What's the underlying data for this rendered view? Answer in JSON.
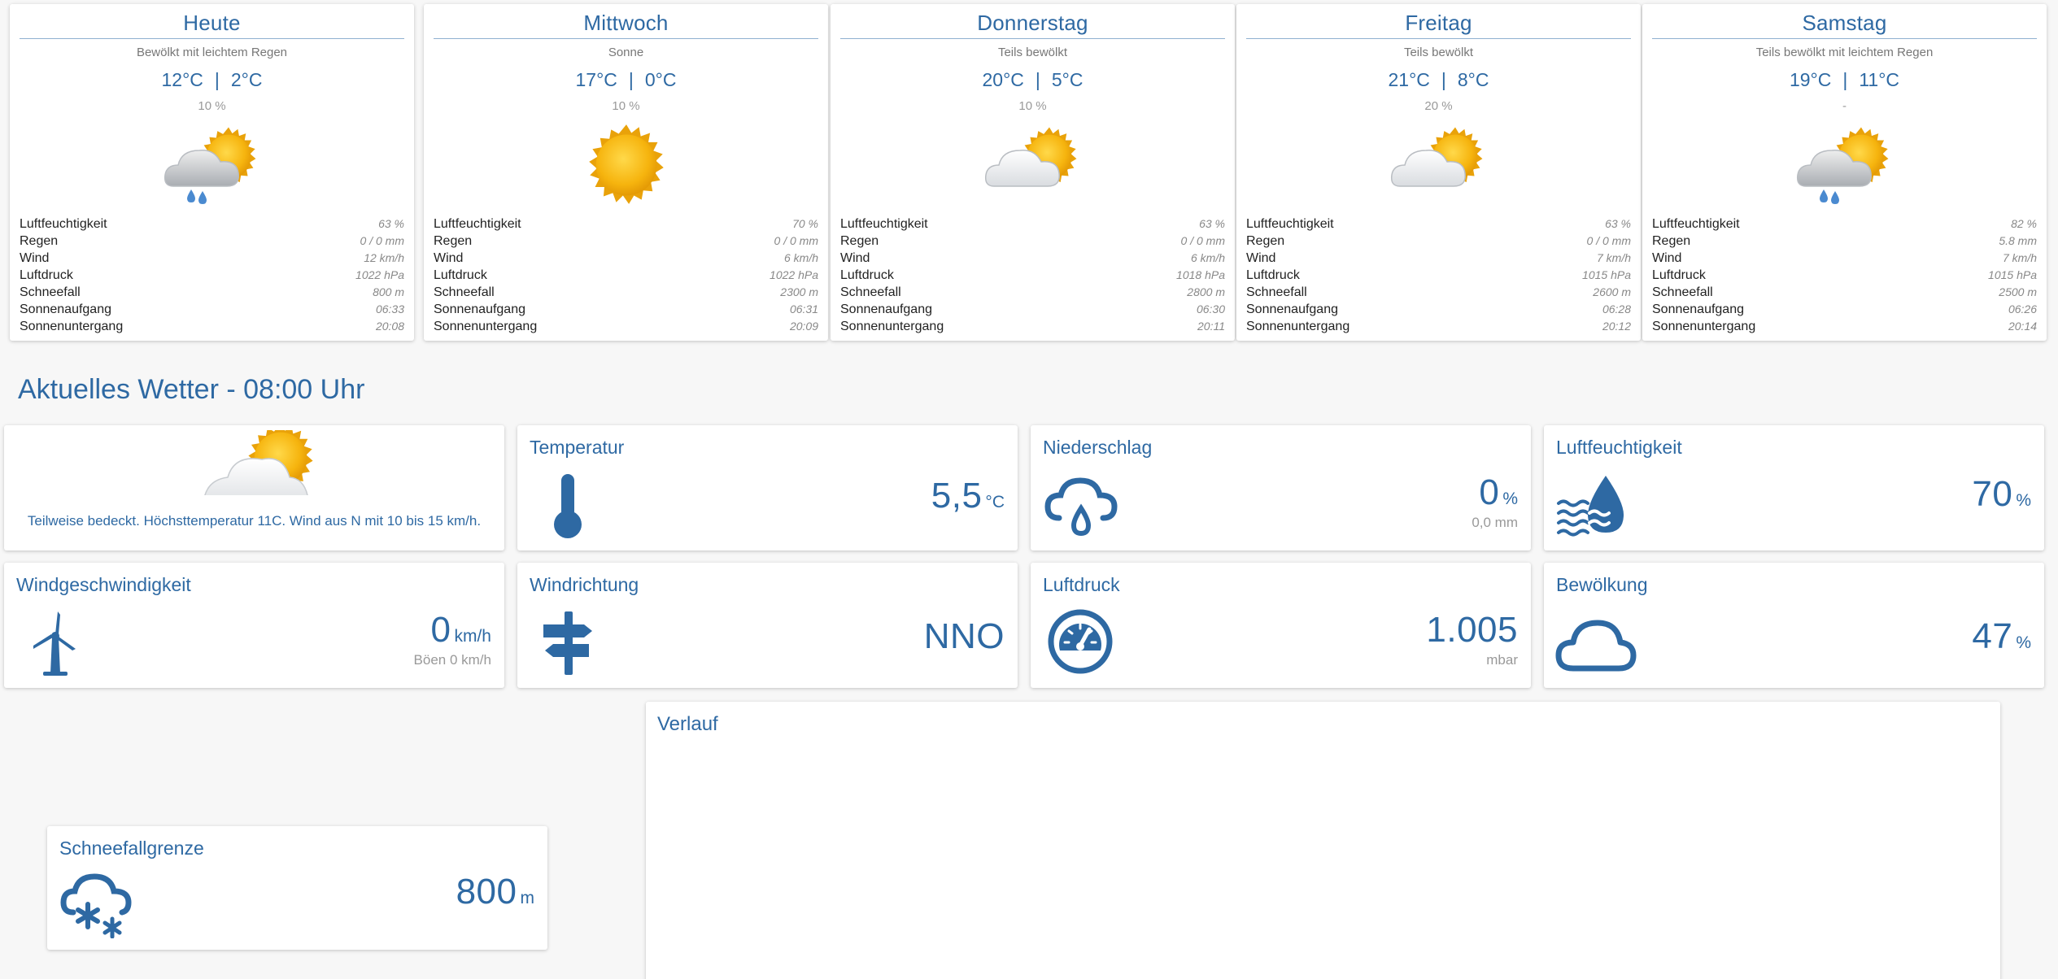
{
  "forecast": [
    {
      "day": "Heute",
      "description": "Bewölkt mit leichtem Regen",
      "temp_max": "12°C",
      "temp_min": "2°C",
      "rain_prob": "10 %",
      "icon": "cloud-sun-rain-icon",
      "details": [
        {
          "label": "Luftfeuchtigkeit",
          "value": "63 %"
        },
        {
          "label": "Regen",
          "value": "0 / 0 mm"
        },
        {
          "label": "Wind",
          "value": "12 km/h"
        },
        {
          "label": "Luftdruck",
          "value": "1022 hPa"
        },
        {
          "label": "Schneefall",
          "value": "800 m"
        },
        {
          "label": "Sonnenaufgang",
          "value": "06:33"
        },
        {
          "label": "Sonnenuntergang",
          "value": "20:08"
        }
      ]
    },
    {
      "day": "Mittwoch",
      "description": "Sonne",
      "temp_max": "17°C",
      "temp_min": "0°C",
      "rain_prob": "10 %",
      "icon": "sun-icon",
      "details": [
        {
          "label": "Luftfeuchtigkeit",
          "value": "70 %"
        },
        {
          "label": "Regen",
          "value": "0 / 0 mm"
        },
        {
          "label": "Wind",
          "value": "6 km/h"
        },
        {
          "label": "Luftdruck",
          "value": "1022 hPa"
        },
        {
          "label": "Schneefall",
          "value": "2300 m"
        },
        {
          "label": "Sonnenaufgang",
          "value": "06:31"
        },
        {
          "label": "Sonnenuntergang",
          "value": "20:09"
        }
      ]
    },
    {
      "day": "Donnerstag",
      "description": "Teils bewölkt",
      "temp_max": "20°C",
      "temp_min": "5°C",
      "rain_prob": "10 %",
      "icon": "cloud-sun-icon",
      "details": [
        {
          "label": "Luftfeuchtigkeit",
          "value": "63 %"
        },
        {
          "label": "Regen",
          "value": "0 / 0 mm"
        },
        {
          "label": "Wind",
          "value": "6 km/h"
        },
        {
          "label": "Luftdruck",
          "value": "1018 hPa"
        },
        {
          "label": "Schneefall",
          "value": "2800 m"
        },
        {
          "label": "Sonnenaufgang",
          "value": "06:30"
        },
        {
          "label": "Sonnenuntergang",
          "value": "20:11"
        }
      ]
    },
    {
      "day": "Freitag",
      "description": "Teils bewölkt",
      "temp_max": "21°C",
      "temp_min": "8°C",
      "rain_prob": "20 %",
      "icon": "cloud-sun-icon",
      "details": [
        {
          "label": "Luftfeuchtigkeit",
          "value": "63 %"
        },
        {
          "label": "Regen",
          "value": "0 / 0 mm"
        },
        {
          "label": "Wind",
          "value": "7 km/h"
        },
        {
          "label": "Luftdruck",
          "value": "1015 hPa"
        },
        {
          "label": "Schneefall",
          "value": "2600 m"
        },
        {
          "label": "Sonnenaufgang",
          "value": "06:28"
        },
        {
          "label": "Sonnenuntergang",
          "value": "20:12"
        }
      ]
    },
    {
      "day": "Samstag",
      "description": "Teils bewölkt mit leichtem Regen",
      "temp_max": "19°C",
      "temp_min": "11°C",
      "rain_prob": "-",
      "icon": "cloud-sun-rain-icon",
      "details": [
        {
          "label": "Luftfeuchtigkeit",
          "value": "82 %"
        },
        {
          "label": "Regen",
          "value": "5.8 mm"
        },
        {
          "label": "Wind",
          "value": "7 km/h"
        },
        {
          "label": "Luftdruck",
          "value": "1015 hPa"
        },
        {
          "label": "Schneefall",
          "value": "2500 m"
        },
        {
          "label": "Sonnenaufgang",
          "value": "06:26"
        },
        {
          "label": "Sonnenuntergang",
          "value": "20:14"
        }
      ]
    }
  ],
  "current": {
    "title": "Aktuelles Wetter - 08:00 Uhr",
    "condition_text": "Teilweise bedeckt. Höchsttemperatur 11C. Wind aus N mit 10 bis 15 km/h.",
    "condition_icon": "cloud-sun-icon",
    "temperature": {
      "title": "Temperatur",
      "value": "5,5",
      "unit": "°C",
      "icon": "thermometer-icon"
    },
    "precipitation": {
      "title": "Niederschlag",
      "value": "0",
      "unit": "%",
      "sub": "0,0 mm",
      "icon": "rain-cloud-icon"
    },
    "humidity": {
      "title": "Luftfeuchtigkeit",
      "value": "70",
      "unit": "%",
      "icon": "humidity-drop-icon"
    },
    "wind_speed": {
      "title": "Windgeschwindigkeit",
      "value": "0",
      "unit": "km/h",
      "sub": "Böen 0 km/h",
      "icon": "wind-turbine-icon"
    },
    "wind_direction": {
      "title": "Windrichtung",
      "value": "NNO",
      "icon": "signpost-icon"
    },
    "pressure": {
      "title": "Luftdruck",
      "value": "1.005",
      "unit": "mbar",
      "icon": "gauge-icon"
    },
    "cloudiness": {
      "title": "Bewölkung",
      "value": "47",
      "unit": "%",
      "icon": "cloud-icon"
    },
    "snow_line": {
      "title": "Schneefallgrenze",
      "value": "800",
      "unit": "m",
      "icon": "snow-cloud-icon"
    },
    "history": {
      "title": "Verlauf"
    }
  },
  "colors": {
    "accent": "#2e69a3",
    "background": "#f7f7f7",
    "card": "#ffffff",
    "sun": "#f6b40e"
  }
}
